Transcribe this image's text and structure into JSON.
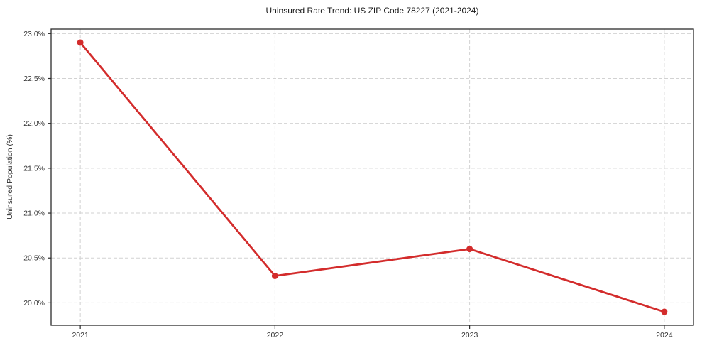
{
  "chart_data": {
    "type": "line",
    "title": "Uninsured Rate Trend: US ZIP Code 78227 (2021-2024)",
    "xlabel": "",
    "ylabel": "Uninsured Population (%)",
    "categories": [
      "2021",
      "2022",
      "2023",
      "2024"
    ],
    "series": [
      {
        "name": "Uninsured Population (%)",
        "values": [
          22.9,
          20.3,
          20.6,
          19.9
        ]
      }
    ],
    "x_numeric": [
      2021,
      2022,
      2023,
      2024
    ],
    "xlim": [
      2020.85,
      2024.15
    ],
    "ylim": [
      19.75,
      23.05
    ],
    "yticks": [
      20.0,
      20.5,
      21.0,
      21.5,
      22.0,
      22.5,
      23.0
    ],
    "ytick_labels": [
      "20.0%",
      "20.5%",
      "21.0%",
      "21.5%",
      "22.0%",
      "22.5%",
      "23.0%"
    ],
    "xtick_labels": [
      "2021",
      "2022",
      "2023",
      "2024"
    ],
    "grid": true,
    "grid_style": "dashed",
    "legend": "none",
    "colors": {
      "line": "#d32c2c",
      "marker": "#d32c2c",
      "grid": "#d2d2d2",
      "spine": "#2b2b2b",
      "tick_text": "#333333",
      "background": "#ffffff"
    }
  }
}
